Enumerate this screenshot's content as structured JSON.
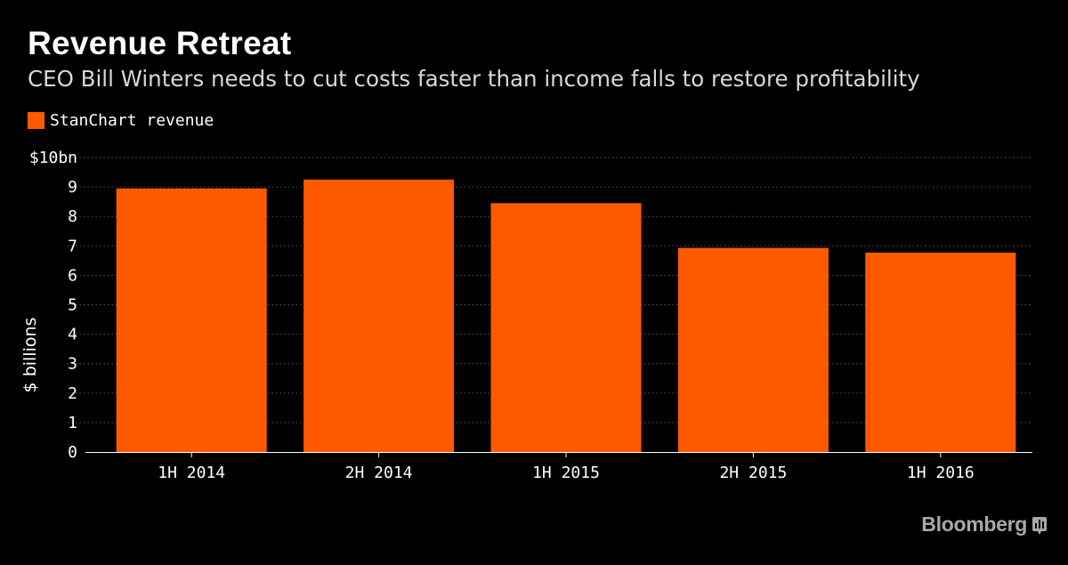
{
  "header": {
    "title": "Revenue Retreat",
    "subtitle": "CEO Bill Winters needs to cut costs faster than income falls to restore profitability"
  },
  "branding": {
    "source": "Bloomberg",
    "source_icon": "bloomberg-chart-icon"
  },
  "colors": {
    "background": "#000000",
    "bar": "#ff5a00",
    "gridline": "#555555",
    "axis": "#ffffff",
    "brand_gray": "#a8a8a8"
  },
  "chart_data": {
    "type": "bar",
    "title": "Revenue Retreat",
    "subtitle": "CEO Bill Winters needs to cut costs faster than income falls to restore profitability",
    "xlabel": "",
    "ylabel": "$ billions",
    "ylim": [
      0,
      10
    ],
    "yticks": [
      {
        "value": 0,
        "label": "0"
      },
      {
        "value": 1,
        "label": "1"
      },
      {
        "value": 2,
        "label": "2"
      },
      {
        "value": 3,
        "label": "3"
      },
      {
        "value": 4,
        "label": "4"
      },
      {
        "value": 5,
        "label": "5"
      },
      {
        "value": 6,
        "label": "6"
      },
      {
        "value": 7,
        "label": "7"
      },
      {
        "value": 8,
        "label": "8"
      },
      {
        "value": 9,
        "label": "9"
      },
      {
        "value": 10,
        "label": "$10bn"
      }
    ],
    "grid": true,
    "legend_position": "top-left",
    "categories": [
      "1H 2014",
      "2H 2014",
      "1H 2015",
      "2H 2015",
      "1H 2016"
    ],
    "series": [
      {
        "name": "StanChart revenue",
        "color": "#ff5a00",
        "values": [
          8.95,
          9.25,
          8.45,
          6.93,
          6.77
        ]
      }
    ]
  }
}
